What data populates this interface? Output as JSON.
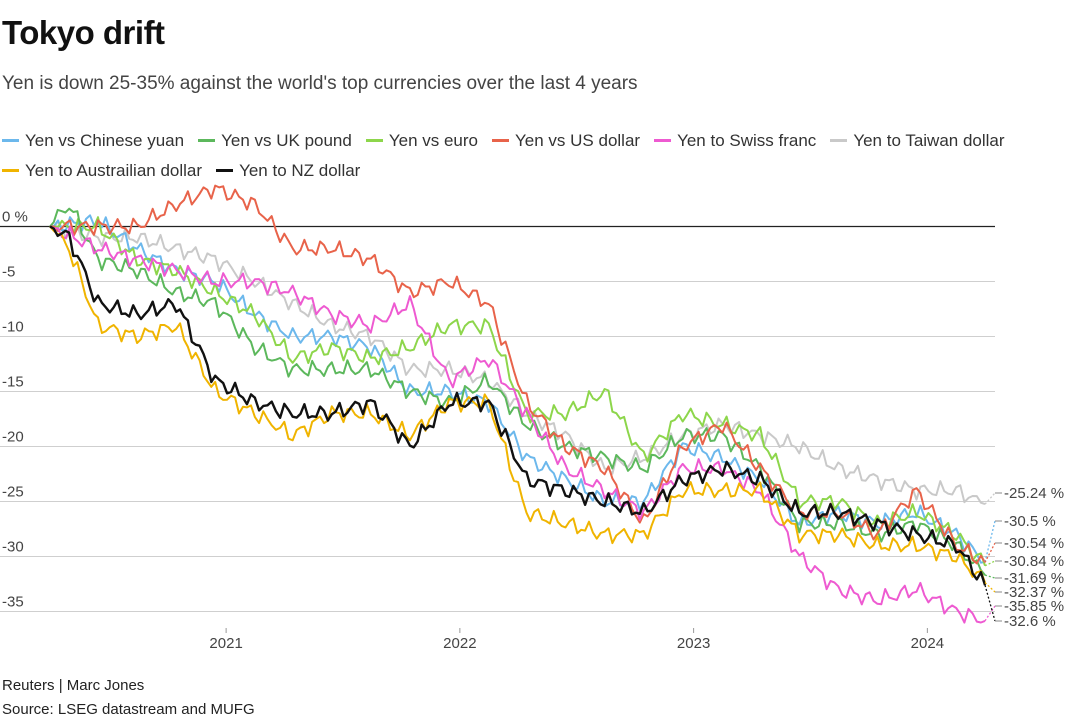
{
  "title": "Tokyo drift",
  "subtitle": "Yen is down 25-35% against the world's top currencies over the last 4 years",
  "credit": "Reuters | Marc Jones",
  "source": "Source: LSEG datastream and MUFG",
  "chart_data": {
    "type": "line",
    "y_unit_label": "0 %",
    "ylim": [
      -36.5,
      3.5
    ],
    "yticks": [
      0,
      -5,
      -10,
      -15,
      -20,
      -25,
      -30,
      -35
    ],
    "ytick_labels": [
      "0 %",
      "-5",
      "-10",
      "-15",
      "-20",
      "-25",
      "-30",
      "-35"
    ],
    "xlim": [
      "2020-04-01",
      "2024-03-31"
    ],
    "xticks": [
      {
        "date": "2021-01-01",
        "label": "2021"
      },
      {
        "date": "2022-01-01",
        "label": "2022"
      },
      {
        "date": "2023-01-01",
        "label": "2023"
      },
      {
        "date": "2024-01-01",
        "label": "2024"
      }
    ],
    "grid": true,
    "legend_position": "top",
    "series": [
      {
        "name": "Yen vs Chinese yuan",
        "color": "#6cb8ec",
        "end_label": "-30.5 %",
        "points": [
          [
            "2020-04-01",
            0
          ],
          [
            "2020-06-15",
            0.5
          ],
          [
            "2020-08-15",
            -2
          ],
          [
            "2020-10-15",
            -4
          ],
          [
            "2020-12-15",
            -5
          ],
          [
            "2021-02-15",
            -8
          ],
          [
            "2021-04-15",
            -10
          ],
          [
            "2021-06-15",
            -10
          ],
          [
            "2021-08-15",
            -11
          ],
          [
            "2021-10-15",
            -15
          ],
          [
            "2021-12-15",
            -15
          ],
          [
            "2022-02-15",
            -16
          ],
          [
            "2022-04-15",
            -21
          ],
          [
            "2022-06-15",
            -23
          ],
          [
            "2022-08-15",
            -25
          ],
          [
            "2022-10-15",
            -25
          ],
          [
            "2022-12-15",
            -20
          ],
          [
            "2023-02-15",
            -21
          ],
          [
            "2023-04-15",
            -23
          ],
          [
            "2023-06-15",
            -27
          ],
          [
            "2023-08-15",
            -26
          ],
          [
            "2023-10-15",
            -27
          ],
          [
            "2023-12-15",
            -26
          ],
          [
            "2024-02-15",
            -28
          ],
          [
            "2024-03-31",
            -30.5
          ]
        ]
      },
      {
        "name": "Yen vs UK pound",
        "color": "#5cb85c",
        "end_label": "-31.69 %",
        "points": [
          [
            "2020-04-01",
            0
          ],
          [
            "2020-05-01",
            2
          ],
          [
            "2020-06-15",
            -3
          ],
          [
            "2020-08-15",
            -4
          ],
          [
            "2020-10-15",
            -6
          ],
          [
            "2020-12-15",
            -7
          ],
          [
            "2021-02-15",
            -11
          ],
          [
            "2021-04-15",
            -13
          ],
          [
            "2021-06-15",
            -13
          ],
          [
            "2021-08-15",
            -13
          ],
          [
            "2021-10-15",
            -15
          ],
          [
            "2021-12-15",
            -16
          ],
          [
            "2022-02-15",
            -14
          ],
          [
            "2022-04-15",
            -18
          ],
          [
            "2022-06-15",
            -20
          ],
          [
            "2022-08-15",
            -21
          ],
          [
            "2022-10-15",
            -22
          ],
          [
            "2022-12-15",
            -19
          ],
          [
            "2023-02-15",
            -19
          ],
          [
            "2023-04-15",
            -22
          ],
          [
            "2023-06-15",
            -27
          ],
          [
            "2023-08-15",
            -27
          ],
          [
            "2023-10-15",
            -28
          ],
          [
            "2023-12-15",
            -27
          ],
          [
            "2024-02-15",
            -29
          ],
          [
            "2024-03-31",
            -31.69
          ]
        ]
      },
      {
        "name": "Yen vs euro",
        "color": "#8dd64b",
        "end_label": "-30.84 %",
        "points": [
          [
            "2020-04-01",
            0
          ],
          [
            "2020-06-15",
            0
          ],
          [
            "2020-08-15",
            -3
          ],
          [
            "2020-10-15",
            -4
          ],
          [
            "2020-12-15",
            -6
          ],
          [
            "2021-02-15",
            -8
          ],
          [
            "2021-04-15",
            -12
          ],
          [
            "2021-06-15",
            -11
          ],
          [
            "2021-08-15",
            -12
          ],
          [
            "2021-10-15",
            -11
          ],
          [
            "2021-12-15",
            -9
          ],
          [
            "2022-02-15",
            -9
          ],
          [
            "2022-04-15",
            -17
          ],
          [
            "2022-06-15",
            -17
          ],
          [
            "2022-08-15",
            -15
          ],
          [
            "2022-10-15",
            -21
          ],
          [
            "2022-12-15",
            -17
          ],
          [
            "2023-02-15",
            -18
          ],
          [
            "2023-04-15",
            -19
          ],
          [
            "2023-06-15",
            -25
          ],
          [
            "2023-08-15",
            -25
          ],
          [
            "2023-10-15",
            -27
          ],
          [
            "2023-12-15",
            -26
          ],
          [
            "2024-02-15",
            -28
          ],
          [
            "2024-03-31",
            -30.84
          ]
        ]
      },
      {
        "name": "Yen vs US dollar",
        "color": "#e8634a",
        "end_label": "-30.54 %",
        "points": [
          [
            "2020-04-01",
            0
          ],
          [
            "2020-06-15",
            0
          ],
          [
            "2020-08-15",
            0
          ],
          [
            "2020-10-15",
            2
          ],
          [
            "2020-12-15",
            3.5
          ],
          [
            "2021-02-15",
            2
          ],
          [
            "2021-04-15",
            -2
          ],
          [
            "2021-06-15",
            -2
          ],
          [
            "2021-08-15",
            -3
          ],
          [
            "2021-10-15",
            -6
          ],
          [
            "2021-12-15",
            -5
          ],
          [
            "2022-02-15",
            -7
          ],
          [
            "2022-04-15",
            -16
          ],
          [
            "2022-06-15",
            -20
          ],
          [
            "2022-08-15",
            -22
          ],
          [
            "2022-10-15",
            -27
          ],
          [
            "2022-12-15",
            -20
          ],
          [
            "2023-02-15",
            -18
          ],
          [
            "2023-04-15",
            -22
          ],
          [
            "2023-06-15",
            -26
          ],
          [
            "2023-08-15",
            -26
          ],
          [
            "2023-10-15",
            -28
          ],
          [
            "2023-12-15",
            -24
          ],
          [
            "2024-02-15",
            -29
          ],
          [
            "2024-03-31",
            -30.54
          ]
        ]
      },
      {
        "name": "Yen to Swiss franc",
        "color": "#ee5ad1",
        "end_label": "-35.85 %",
        "points": [
          [
            "2020-04-01",
            0
          ],
          [
            "2020-06-15",
            -2
          ],
          [
            "2020-08-15",
            -3
          ],
          [
            "2020-10-15",
            -4
          ],
          [
            "2020-12-15",
            -5
          ],
          [
            "2021-02-15",
            -5
          ],
          [
            "2021-04-15",
            -6
          ],
          [
            "2021-06-15",
            -8
          ],
          [
            "2021-08-15",
            -9
          ],
          [
            "2021-10-15",
            -7
          ],
          [
            "2021-12-15",
            -14
          ],
          [
            "2022-02-15",
            -12
          ],
          [
            "2022-04-15",
            -17
          ],
          [
            "2022-06-15",
            -22
          ],
          [
            "2022-08-15",
            -24
          ],
          [
            "2022-10-15",
            -26
          ],
          [
            "2022-12-15",
            -22
          ],
          [
            "2023-02-15",
            -22
          ],
          [
            "2023-04-15",
            -24
          ],
          [
            "2023-06-15",
            -30
          ],
          [
            "2023-08-15",
            -33
          ],
          [
            "2023-10-15",
            -34
          ],
          [
            "2023-12-15",
            -33
          ],
          [
            "2024-02-15",
            -35
          ],
          [
            "2024-03-31",
            -35.85
          ]
        ]
      },
      {
        "name": "Yen to Taiwan dollar",
        "color": "#c9c9c9",
        "end_label": "-25.24 %",
        "points": [
          [
            "2020-04-01",
            0
          ],
          [
            "2020-06-15",
            -1
          ],
          [
            "2020-08-15",
            -1
          ],
          [
            "2020-10-15",
            -2
          ],
          [
            "2020-12-15",
            -3
          ],
          [
            "2021-02-15",
            -5
          ],
          [
            "2021-04-15",
            -7
          ],
          [
            "2021-06-15",
            -9
          ],
          [
            "2021-08-15",
            -10
          ],
          [
            "2021-10-15",
            -13
          ],
          [
            "2021-12-15",
            -13
          ],
          [
            "2022-02-15",
            -14
          ],
          [
            "2022-04-15",
            -17
          ],
          [
            "2022-06-15",
            -19
          ],
          [
            "2022-08-15",
            -22
          ],
          [
            "2022-10-15",
            -21
          ],
          [
            "2022-12-15",
            -19
          ],
          [
            "2023-02-15",
            -18
          ],
          [
            "2023-04-15",
            -19
          ],
          [
            "2023-06-15",
            -20
          ],
          [
            "2023-08-15",
            -22
          ],
          [
            "2023-10-15",
            -23
          ],
          [
            "2023-12-15",
            -24
          ],
          [
            "2024-02-15",
            -24
          ],
          [
            "2024-03-31",
            -25.24
          ]
        ]
      },
      {
        "name": "Yen to Austrailian dollar",
        "color": "#f0b400",
        "end_label": "-32.37 %",
        "points": [
          [
            "2020-04-01",
            0
          ],
          [
            "2020-05-01",
            -2
          ],
          [
            "2020-06-15",
            -9
          ],
          [
            "2020-08-15",
            -10
          ],
          [
            "2020-10-15",
            -9
          ],
          [
            "2020-12-15",
            -15
          ],
          [
            "2021-02-15",
            -17
          ],
          [
            "2021-04-15",
            -19
          ],
          [
            "2021-06-15",
            -17
          ],
          [
            "2021-08-15",
            -17
          ],
          [
            "2021-10-15",
            -19
          ],
          [
            "2021-12-15",
            -16
          ],
          [
            "2022-02-15",
            -16
          ],
          [
            "2022-04-15",
            -26
          ],
          [
            "2022-06-15",
            -27
          ],
          [
            "2022-08-15",
            -28
          ],
          [
            "2022-10-15",
            -28
          ],
          [
            "2022-12-15",
            -24
          ],
          [
            "2023-02-15",
            -24
          ],
          [
            "2023-04-15",
            -24
          ],
          [
            "2023-06-15",
            -28
          ],
          [
            "2023-08-15",
            -28
          ],
          [
            "2023-10-15",
            -29
          ],
          [
            "2023-12-15",
            -29
          ],
          [
            "2024-02-15",
            -30
          ],
          [
            "2024-03-31",
            -32.37
          ]
        ]
      },
      {
        "name": "Yen to NZ dollar",
        "color": "#111111",
        "end_label": "-32.6 %",
        "points": [
          [
            "2020-04-01",
            0
          ],
          [
            "2020-05-01",
            -1
          ],
          [
            "2020-06-15",
            -7
          ],
          [
            "2020-08-15",
            -8
          ],
          [
            "2020-10-15",
            -7
          ],
          [
            "2020-12-15",
            -14
          ],
          [
            "2021-02-15",
            -16
          ],
          [
            "2021-04-15",
            -17
          ],
          [
            "2021-06-15",
            -17
          ],
          [
            "2021-08-15",
            -16
          ],
          [
            "2021-10-15",
            -20
          ],
          [
            "2021-12-15",
            -16
          ],
          [
            "2022-02-15",
            -16
          ],
          [
            "2022-04-15",
            -23
          ],
          [
            "2022-06-15",
            -24
          ],
          [
            "2022-08-15",
            -25
          ],
          [
            "2022-10-15",
            -26
          ],
          [
            "2022-12-15",
            -23
          ],
          [
            "2023-02-15",
            -22
          ],
          [
            "2023-04-15",
            -23
          ],
          [
            "2023-06-15",
            -26
          ],
          [
            "2023-08-15",
            -26
          ],
          [
            "2023-10-15",
            -27
          ],
          [
            "2023-12-15",
            -28
          ],
          [
            "2024-02-15",
            -29
          ],
          [
            "2024-03-31",
            -32.6
          ]
        ]
      }
    ]
  }
}
